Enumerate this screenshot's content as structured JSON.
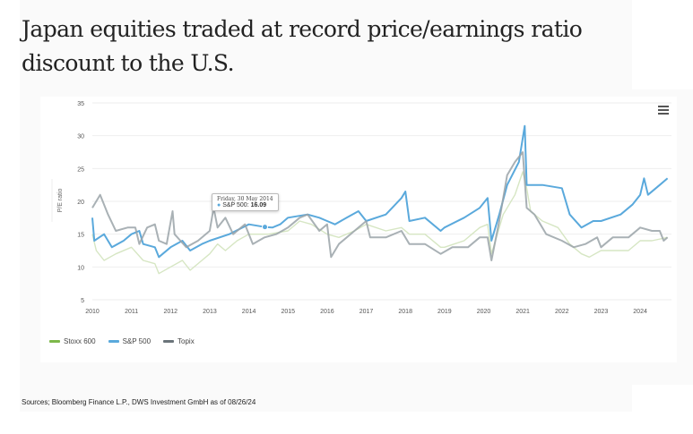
{
  "title": "Japan equities traded at record price/earnings ratio discount to the U.S.",
  "source": "Sources; Bloomberg Finance L.P., DWS Investment GmbH as of 08/26/24",
  "tooltip": {
    "date": "Friday, 30 May 2014",
    "series": "S&P 500:",
    "value": "16.09"
  },
  "chart_data": {
    "type": "line",
    "title": "",
    "xlabel": "",
    "ylabel": "P/E ratio",
    "xlim": [
      2010,
      2024.75
    ],
    "ylim": [
      5,
      35
    ],
    "yticks": [
      "5",
      "10",
      "15",
      "20",
      "25",
      "30",
      "35"
    ],
    "xticks": [
      "2010",
      "2011",
      "2012",
      "2013",
      "2014",
      "2015",
      "2016",
      "2017",
      "2018",
      "2019",
      "2020",
      "2021",
      "2022",
      "2023",
      "2024"
    ],
    "grid": true,
    "legend": "bottom-left",
    "series": [
      {
        "name": "Stoxx 600",
        "color": "#d6e6c3",
        "points": [
          [
            2010.0,
            15
          ],
          [
            2010.1,
            12.5
          ],
          [
            2010.3,
            11
          ],
          [
            2010.6,
            12
          ],
          [
            2011.0,
            13
          ],
          [
            2011.3,
            11
          ],
          [
            2011.6,
            10.5
          ],
          [
            2011.7,
            9
          ],
          [
            2012.0,
            10
          ],
          [
            2012.3,
            11
          ],
          [
            2012.5,
            9.5
          ],
          [
            2012.8,
            11
          ],
          [
            2013.0,
            12
          ],
          [
            2013.2,
            13.5
          ],
          [
            2013.4,
            12.5
          ],
          [
            2013.7,
            14
          ],
          [
            2014.0,
            15
          ],
          [
            2014.5,
            15
          ],
          [
            2015.0,
            15.5
          ],
          [
            2015.3,
            17
          ],
          [
            2015.6,
            16.5
          ],
          [
            2016.0,
            15
          ],
          [
            2016.3,
            14.5
          ],
          [
            2016.7,
            15.5
          ],
          [
            2017.0,
            16.5
          ],
          [
            2017.5,
            15.5
          ],
          [
            2017.9,
            16
          ],
          [
            2018.1,
            15
          ],
          [
            2018.5,
            15
          ],
          [
            2018.9,
            13
          ],
          [
            2019.0,
            13
          ],
          [
            2019.5,
            14
          ],
          [
            2019.9,
            16
          ],
          [
            2020.1,
            16.5
          ],
          [
            2020.2,
            12
          ],
          [
            2020.5,
            18
          ],
          [
            2020.8,
            21
          ],
          [
            2021.0,
            24.5
          ],
          [
            2021.1,
            22
          ],
          [
            2021.2,
            18.5
          ],
          [
            2021.5,
            17
          ],
          [
            2021.9,
            16
          ],
          [
            2022.2,
            13.5
          ],
          [
            2022.5,
            12
          ],
          [
            2022.7,
            11.5
          ],
          [
            2023.0,
            12.5
          ],
          [
            2023.3,
            12.5
          ],
          [
            2023.7,
            12.5
          ],
          [
            2024.0,
            14
          ],
          [
            2024.3,
            14
          ],
          [
            2024.7,
            14.5
          ]
        ]
      },
      {
        "name": "S&P 500",
        "color": "#5aa9dc",
        "points": [
          [
            2010.0,
            17.5
          ],
          [
            2010.05,
            14
          ],
          [
            2010.3,
            15
          ],
          [
            2010.5,
            13
          ],
          [
            2010.8,
            14
          ],
          [
            2011.0,
            15
          ],
          [
            2011.2,
            15.5
          ],
          [
            2011.3,
            13.5
          ],
          [
            2011.6,
            13
          ],
          [
            2011.7,
            11.5
          ],
          [
            2012.0,
            13
          ],
          [
            2012.3,
            14
          ],
          [
            2012.5,
            12.5
          ],
          [
            2012.8,
            13.5
          ],
          [
            2013.0,
            14
          ],
          [
            2013.5,
            15
          ],
          [
            2014.0,
            16.5
          ],
          [
            2014.41,
            16.09
          ],
          [
            2014.6,
            16
          ],
          [
            2014.8,
            16.5
          ],
          [
            2015.0,
            17.5
          ],
          [
            2015.5,
            18
          ],
          [
            2015.8,
            17.5
          ],
          [
            2016.0,
            17
          ],
          [
            2016.2,
            16.5
          ],
          [
            2016.5,
            17.5
          ],
          [
            2016.8,
            18.5
          ],
          [
            2017.0,
            17
          ],
          [
            2017.5,
            18
          ],
          [
            2017.9,
            20.5
          ],
          [
            2018.0,
            21.5
          ],
          [
            2018.1,
            17
          ],
          [
            2018.5,
            17.5
          ],
          [
            2018.9,
            15.5
          ],
          [
            2019.0,
            16
          ],
          [
            2019.5,
            17.5
          ],
          [
            2019.9,
            19
          ],
          [
            2020.1,
            20.5
          ],
          [
            2020.2,
            14
          ],
          [
            2020.4,
            18
          ],
          [
            2020.6,
            22.5
          ],
          [
            2020.9,
            26
          ],
          [
            2021.05,
            31.5
          ],
          [
            2021.1,
            22.5
          ],
          [
            2021.5,
            22.5
          ],
          [
            2022.0,
            22
          ],
          [
            2022.2,
            18
          ],
          [
            2022.5,
            16
          ],
          [
            2022.8,
            17
          ],
          [
            2023.0,
            17
          ],
          [
            2023.5,
            18
          ],
          [
            2023.8,
            19.5
          ],
          [
            2024.0,
            21
          ],
          [
            2024.1,
            23.5
          ],
          [
            2024.2,
            21
          ],
          [
            2024.5,
            22.5
          ],
          [
            2024.7,
            23.5
          ]
        ]
      },
      {
        "name": "Topix",
        "color": "#9aa3a8",
        "points": [
          [
            2010.0,
            19
          ],
          [
            2010.2,
            21
          ],
          [
            2010.4,
            18
          ],
          [
            2010.6,
            15.5
          ],
          [
            2010.9,
            16
          ],
          [
            2011.1,
            16
          ],
          [
            2011.2,
            13.5
          ],
          [
            2011.4,
            16
          ],
          [
            2011.6,
            16.5
          ],
          [
            2011.7,
            14
          ],
          [
            2011.9,
            13.5
          ],
          [
            2012.05,
            18.5
          ],
          [
            2012.1,
            15
          ],
          [
            2012.4,
            13
          ],
          [
            2012.7,
            14
          ],
          [
            2013.0,
            15.5
          ],
          [
            2013.1,
            19
          ],
          [
            2013.2,
            16
          ],
          [
            2013.4,
            17.5
          ],
          [
            2013.6,
            15
          ],
          [
            2013.9,
            16.5
          ],
          [
            2014.1,
            13.5
          ],
          [
            2014.4,
            14.5
          ],
          [
            2014.7,
            15
          ],
          [
            2015.0,
            16
          ],
          [
            2015.3,
            17.5
          ],
          [
            2015.5,
            18
          ],
          [
            2015.8,
            15.5
          ],
          [
            2016.0,
            16.5
          ],
          [
            2016.1,
            11.5
          ],
          [
            2016.3,
            13.5
          ],
          [
            2016.7,
            15.5
          ],
          [
            2017.0,
            17
          ],
          [
            2017.1,
            14.5
          ],
          [
            2017.5,
            14.5
          ],
          [
            2017.9,
            15.5
          ],
          [
            2018.1,
            13.5
          ],
          [
            2018.5,
            13.5
          ],
          [
            2018.9,
            12
          ],
          [
            2019.2,
            13
          ],
          [
            2019.6,
            13
          ],
          [
            2019.9,
            14.5
          ],
          [
            2020.1,
            14.5
          ],
          [
            2020.2,
            11
          ],
          [
            2020.4,
            17
          ],
          [
            2020.6,
            24
          ],
          [
            2020.8,
            26
          ],
          [
            2021.0,
            27.5
          ],
          [
            2021.1,
            19
          ],
          [
            2021.3,
            18
          ],
          [
            2021.6,
            15
          ],
          [
            2022.0,
            14
          ],
          [
            2022.3,
            13
          ],
          [
            2022.6,
            13.5
          ],
          [
            2022.9,
            14.5
          ],
          [
            2023.0,
            13
          ],
          [
            2023.3,
            14.5
          ],
          [
            2023.7,
            14.5
          ],
          [
            2024.0,
            16
          ],
          [
            2024.3,
            15.5
          ],
          [
            2024.5,
            15.5
          ],
          [
            2024.6,
            14
          ],
          [
            2024.7,
            14.5
          ]
        ]
      }
    ]
  }
}
